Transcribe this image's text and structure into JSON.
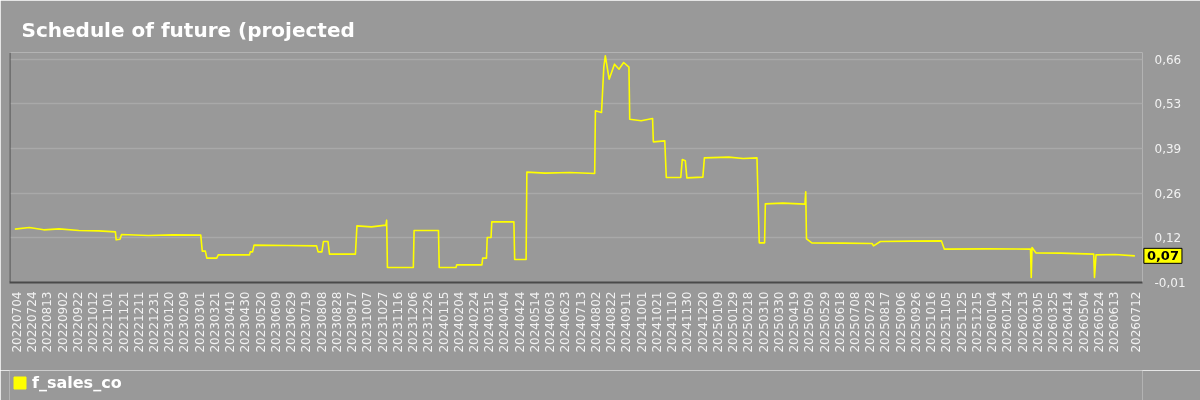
{
  "chart_data": {
    "type": "line",
    "title": "Schedule of future (projected",
    "x": [
      "2022-07-02",
      "2022-07-21",
      "2022-08-09",
      "2022-08-29",
      "2022-09-24",
      "2022-10-20",
      "2022-11-11",
      "2022-11-12",
      "2022-11-17",
      "2022-11-19",
      "2022-12-24",
      "2023-01-25",
      "2023-03-03",
      "2023-03-05",
      "2023-03-09",
      "2023-03-11",
      "2023-03-24",
      "2023-03-26",
      "2023-05-06",
      "2023-05-07",
      "2023-05-10",
      "2023-05-12",
      "2023-06-24",
      "2023-08-02",
      "2023-08-04",
      "2023-08-09",
      "2023-08-11",
      "2023-08-17",
      "2023-08-19",
      "2023-09-22",
      "2023-09-24",
      "2023-10-13",
      "2023-11-01",
      "2023-11-02",
      "2023-11-03",
      "2023-12-07",
      "2023-12-08",
      "2024-01-09",
      "2024-01-10",
      "2024-02-01",
      "2024-02-02",
      "2024-03-06",
      "2024-03-07",
      "2024-03-12",
      "2024-03-13",
      "2024-03-18",
      "2024-03-19",
      "2024-04-17",
      "2024-04-18",
      "2024-05-03",
      "2024-05-04",
      "2024-05-28",
      "2024-06-29",
      "2024-08-01",
      "2024-08-02",
      "2024-08-10",
      "2024-08-13",
      "2024-08-15",
      "2024-08-20",
      "2024-08-27",
      "2024-09-02",
      "2024-09-08",
      "2024-09-15",
      "2024-09-16",
      "2024-10-01",
      "2024-10-16",
      "2024-10-17",
      "2024-11-01",
      "2024-11-03",
      "2024-11-22",
      "2024-11-24",
      "2024-11-28",
      "2024-11-30",
      "2024-12-21",
      "2024-12-23",
      "2025-01-24",
      "2025-02-12",
      "2025-03-02",
      "2025-03-05",
      "2025-03-12",
      "2025-03-13",
      "2025-04-05",
      "2025-05-04",
      "2025-05-05",
      "2025-05-06",
      "2025-05-13",
      "2025-06-23",
      "2025-07-31",
      "2025-08-02",
      "2025-08-11",
      "2025-09-21",
      "2025-10-30",
      "2025-11-03",
      "2025-12-29",
      "2026-02-24",
      "2026-02-25",
      "2026-02-26",
      "2026-03-03",
      "2026-04-05",
      "2026-05-18",
      "2026-05-19",
      "2026-05-21",
      "2026-06-15",
      "2026-07-11"
    ],
    "series": [
      {
        "name": "f_sales_co",
        "color": "#ffff00",
        "values": [
          0.15,
          0.155,
          0.148,
          0.151,
          0.146,
          0.145,
          0.142,
          0.118,
          0.12,
          0.134,
          0.131,
          0.133,
          0.132,
          0.084,
          0.084,
          0.063,
          0.063,
          0.073,
          0.073,
          0.082,
          0.082,
          0.102,
          0.101,
          0.1,
          0.082,
          0.082,
          0.113,
          0.113,
          0.075,
          0.075,
          0.16,
          0.157,
          0.162,
          0.177,
          0.035,
          0.035,
          0.146,
          0.146,
          0.035,
          0.035,
          0.043,
          0.043,
          0.063,
          0.063,
          0.125,
          0.125,
          0.172,
          0.172,
          0.059,
          0.059,
          0.321,
          0.318,
          0.32,
          0.317,
          0.505,
          0.5,
          0.636,
          0.67,
          0.6,
          0.645,
          0.63,
          0.65,
          0.636,
          0.48,
          0.475,
          0.482,
          0.412,
          0.415,
          0.305,
          0.305,
          0.359,
          0.355,
          0.304,
          0.306,
          0.364,
          0.366,
          0.362,
          0.364,
          0.109,
          0.109,
          0.226,
          0.228,
          0.225,
          0.262,
          0.121,
          0.109,
          0.108,
          0.107,
          0.1,
          0.113,
          0.114,
          0.115,
          0.09,
          0.091,
          0.09,
          0.005,
          0.095,
          0.079,
          0.078,
          0.075,
          0.005,
          0.073,
          0.074,
          0.07
        ],
        "value_labels": [
          null,
          null,
          null,
          null,
          null,
          null,
          null,
          null,
          null,
          null,
          null,
          null,
          null,
          null,
          null,
          null,
          null,
          null,
          null,
          null,
          null,
          null,
          null,
          null,
          null,
          null,
          null,
          null,
          null,
          null,
          null,
          null,
          null,
          null,
          null,
          null,
          null,
          null,
          null,
          null,
          null,
          null,
          null,
          null,
          null,
          null,
          null,
          null,
          null,
          null,
          null,
          null,
          null,
          null,
          null,
          null,
          null,
          null,
          null,
          null,
          null,
          null,
          null,
          null,
          null,
          null,
          null,
          null,
          null,
          null,
          null,
          null,
          null,
          null,
          null,
          null,
          null,
          null,
          null,
          null,
          null,
          null,
          null,
          null,
          null,
          null,
          null,
          null,
          null,
          null,
          null,
          null,
          null,
          null,
          null,
          null,
          null,
          null,
          null,
          null,
          null,
          null,
          null,
          "0,07"
        ]
      }
    ],
    "xlim": [
      "2022-06-25",
      "2026-07-21"
    ],
    "xticks": [
      {
        "value": "2022-07-04",
        "label": "20220704"
      },
      {
        "value": "2022-07-24",
        "label": "20220724"
      },
      {
        "value": "2022-08-13",
        "label": "20220813"
      },
      {
        "value": "2022-09-02",
        "label": "20220902"
      },
      {
        "value": "2022-09-22",
        "label": "20220922"
      },
      {
        "value": "2022-10-12",
        "label": "20221012"
      },
      {
        "value": "2022-11-01",
        "label": "20221101"
      },
      {
        "value": "2022-11-21",
        "label": "20221121"
      },
      {
        "value": "2022-12-11",
        "label": "20221211"
      },
      {
        "value": "2022-12-31",
        "label": "20221231"
      },
      {
        "value": "2023-01-20",
        "label": "20230120"
      },
      {
        "value": "2023-02-09",
        "label": "20230209"
      },
      {
        "value": "2023-03-01",
        "label": "20230301"
      },
      {
        "value": "2023-03-21",
        "label": "20230321"
      },
      {
        "value": "2023-04-10",
        "label": "20230410"
      },
      {
        "value": "2023-04-30",
        "label": "20230430"
      },
      {
        "value": "2023-05-20",
        "label": "20230520"
      },
      {
        "value": "2023-06-09",
        "label": "20230609"
      },
      {
        "value": "2023-06-29",
        "label": "20230629"
      },
      {
        "value": "2023-07-19",
        "label": "20230719"
      },
      {
        "value": "2023-08-08",
        "label": "20230808"
      },
      {
        "value": "2023-08-28",
        "label": "20230828"
      },
      {
        "value": "2023-09-17",
        "label": "20230917"
      },
      {
        "value": "2023-10-07",
        "label": "20231007"
      },
      {
        "value": "2023-10-27",
        "label": "20231027"
      },
      {
        "value": "2023-11-16",
        "label": "20231116"
      },
      {
        "value": "2023-12-06",
        "label": "20231206"
      },
      {
        "value": "2023-12-26",
        "label": "20231226"
      },
      {
        "value": "2024-01-15",
        "label": "20240115"
      },
      {
        "value": "2024-02-04",
        "label": "20240204"
      },
      {
        "value": "2024-02-24",
        "label": "20240224"
      },
      {
        "value": "2024-03-15",
        "label": "20240315"
      },
      {
        "value": "2024-04-04",
        "label": "20240404"
      },
      {
        "value": "2024-04-24",
        "label": "20240424"
      },
      {
        "value": "2024-05-14",
        "label": "20240514"
      },
      {
        "value": "2024-06-03",
        "label": "20240603"
      },
      {
        "value": "2024-06-23",
        "label": "20240623"
      },
      {
        "value": "2024-07-13",
        "label": "20240713"
      },
      {
        "value": "2024-08-02",
        "label": "20240802"
      },
      {
        "value": "2024-08-22",
        "label": "20240822"
      },
      {
        "value": "2024-09-11",
        "label": "20240911"
      },
      {
        "value": "2024-10-01",
        "label": "20241001"
      },
      {
        "value": "2024-10-21",
        "label": "20241021"
      },
      {
        "value": "2024-11-10",
        "label": "20241110"
      },
      {
        "value": "2024-11-30",
        "label": "20241130"
      },
      {
        "value": "2024-12-20",
        "label": "20241220"
      },
      {
        "value": "2025-01-09",
        "label": "20250109"
      },
      {
        "value": "2025-01-29",
        "label": "20250129"
      },
      {
        "value": "2025-02-18",
        "label": "20250218"
      },
      {
        "value": "2025-03-10",
        "label": "20250310"
      },
      {
        "value": "2025-03-30",
        "label": "20250330"
      },
      {
        "value": "2025-04-19",
        "label": "20250419"
      },
      {
        "value": "2025-05-09",
        "label": "20250509"
      },
      {
        "value": "2025-05-29",
        "label": "20250529"
      },
      {
        "value": "2025-06-18",
        "label": "20250618"
      },
      {
        "value": "2025-07-08",
        "label": "20250708"
      },
      {
        "value": "2025-07-28",
        "label": "20250728"
      },
      {
        "value": "2025-08-17",
        "label": "20250817"
      },
      {
        "value": "2025-09-06",
        "label": "20250906"
      },
      {
        "value": "2025-09-26",
        "label": "20250926"
      },
      {
        "value": "2025-10-16",
        "label": "20251016"
      },
      {
        "value": "2025-11-05",
        "label": "20251105"
      },
      {
        "value": "2025-11-25",
        "label": "20251125"
      },
      {
        "value": "2025-12-15",
        "label": "20251215"
      },
      {
        "value": "2026-01-04",
        "label": "20260104"
      },
      {
        "value": "2026-01-24",
        "label": "20260124"
      },
      {
        "value": "2026-02-13",
        "label": "20260213"
      },
      {
        "value": "2026-03-05",
        "label": "20260305"
      },
      {
        "value": "2026-03-25",
        "label": "20260325"
      },
      {
        "value": "2026-04-14",
        "label": "20260414"
      },
      {
        "value": "2026-05-04",
        "label": "20260504"
      },
      {
        "value": "2026-05-24",
        "label": "20260524"
      },
      {
        "value": "2026-06-13",
        "label": "20260613"
      },
      {
        "value": "2026-07-12",
        "label": "20260712"
      }
    ],
    "ylim": [
      -0.01,
      0.68
    ],
    "yticks": [
      {
        "value": -0.01,
        "label": "-0,01"
      },
      {
        "value": 0.124,
        "label": "0,12"
      },
      {
        "value": 0.258,
        "label": "0,26"
      },
      {
        "value": 0.392,
        "label": "0,39"
      },
      {
        "value": 0.526,
        "label": "0,53"
      },
      {
        "value": 0.66,
        "label": "0,66"
      }
    ],
    "grid": "y",
    "legend": "bottom left"
  }
}
